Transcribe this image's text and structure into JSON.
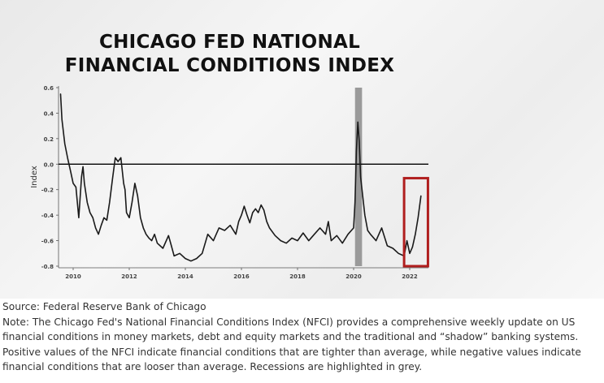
{
  "chart_data": {
    "type": "line",
    "title": [
      "CHICAGO FED NATIONAL",
      "FINANCIAL CONDITIONS INDEX"
    ],
    "ylabel": "Index",
    "xlabel": "",
    "ylim": [
      -0.8,
      0.6
    ],
    "xlim": [
      2009.5,
      2022.5
    ],
    "yticks": [
      "0.6",
      "0.4",
      "0.2",
      "0.0",
      "-0.2",
      "-0.4",
      "-0.6",
      "-0.8"
    ],
    "xticks": [
      "2010",
      "2012",
      "2014",
      "2016",
      "2018",
      "2020",
      "2022"
    ],
    "grid": false,
    "zero_line": true,
    "recession": [
      2020.05,
      2020.3
    ],
    "highlight_box": {
      "x_range": [
        2021.8,
        2022.65
      ],
      "y_range": [
        -0.8,
        -0.11
      ]
    },
    "colors": {
      "line": "#1a1a1a",
      "recession": "#9a9a9a",
      "highlight": "#b01e1e",
      "zero_line": "#000000"
    },
    "series": [
      {
        "x": [
          2009.55,
          2009.6,
          2009.7,
          2009.8,
          2009.9,
          2010.0,
          2010.1,
          2010.2,
          2010.3,
          2010.35,
          2010.4,
          2010.5,
          2010.6,
          2010.7,
          2010.8,
          2010.9,
          2011.0,
          2011.1,
          2011.2,
          2011.3,
          2011.4,
          2011.5,
          2011.6,
          2011.7,
          2011.8,
          2011.85,
          2011.9,
          2012.0,
          2012.1,
          2012.2,
          2012.3,
          2012.4,
          2012.5,
          2012.6,
          2012.7,
          2012.8,
          2012.9,
          2013.0,
          2013.2,
          2013.4,
          2013.5,
          2013.6,
          2013.8,
          2014.0,
          2014.2,
          2014.4,
          2014.6,
          2014.8,
          2015.0,
          2015.2,
          2015.4,
          2015.6,
          2015.8,
          2015.9,
          2016.0,
          2016.1,
          2016.2,
          2016.3,
          2016.4,
          2016.5,
          2016.6,
          2016.7,
          2016.8,
          2016.9,
          2017.0,
          2017.2,
          2017.4,
          2017.6,
          2017.8,
          2018.0,
          2018.2,
          2018.4,
          2018.6,
          2018.8,
          2019.0,
          2019.1,
          2019.2,
          2019.4,
          2019.6,
          2019.8,
          2020.0,
          2020.05,
          2020.1,
          2020.15,
          2020.2,
          2020.25,
          2020.3,
          2020.4,
          2020.5,
          2020.6,
          2020.8,
          2021.0,
          2021.2,
          2021.4,
          2021.6,
          2021.8,
          2021.9,
          2022.0,
          2022.1,
          2022.2,
          2022.3,
          2022.4
        ],
        "values": [
          0.55,
          0.35,
          0.16,
          0.05,
          -0.05,
          -0.15,
          -0.18,
          -0.42,
          -0.1,
          -0.02,
          -0.15,
          -0.3,
          -0.38,
          -0.42,
          -0.5,
          -0.55,
          -0.48,
          -0.42,
          -0.44,
          -0.3,
          -0.12,
          0.05,
          0.02,
          0.05,
          -0.15,
          -0.2,
          -0.38,
          -0.42,
          -0.3,
          -0.15,
          -0.25,
          -0.42,
          -0.5,
          -0.55,
          -0.58,
          -0.6,
          -0.55,
          -0.62,
          -0.66,
          -0.56,
          -0.64,
          -0.72,
          -0.7,
          -0.74,
          -0.76,
          -0.74,
          -0.7,
          -0.55,
          -0.6,
          -0.5,
          -0.52,
          -0.48,
          -0.55,
          -0.45,
          -0.4,
          -0.33,
          -0.4,
          -0.46,
          -0.38,
          -0.35,
          -0.38,
          -0.32,
          -0.36,
          -0.45,
          -0.5,
          -0.56,
          -0.6,
          -0.62,
          -0.58,
          -0.6,
          -0.54,
          -0.6,
          -0.55,
          -0.5,
          -0.55,
          -0.45,
          -0.6,
          -0.56,
          -0.62,
          -0.55,
          -0.5,
          -0.3,
          0.1,
          0.33,
          0.18,
          -0.1,
          -0.2,
          -0.4,
          -0.52,
          -0.55,
          -0.6,
          -0.5,
          -0.64,
          -0.66,
          -0.7,
          -0.72,
          -0.6,
          -0.7,
          -0.65,
          -0.55,
          -0.42,
          -0.25
        ]
      }
    ]
  },
  "caption": {
    "source": "Source: Federal Reserve Bank of Chicago",
    "note": "Note: The Chicago Fed's National Financial Conditions Index (NFCI) provides a comprehensive weekly update on US financial conditions in money markets, debt and equity markets and the traditional and “shadow” banking systems. Positive values of the NFCI indicate financial conditions that are tighter than average, while negative values indicate financial conditions that are looser than average. Recessions are highlighted in grey."
  }
}
